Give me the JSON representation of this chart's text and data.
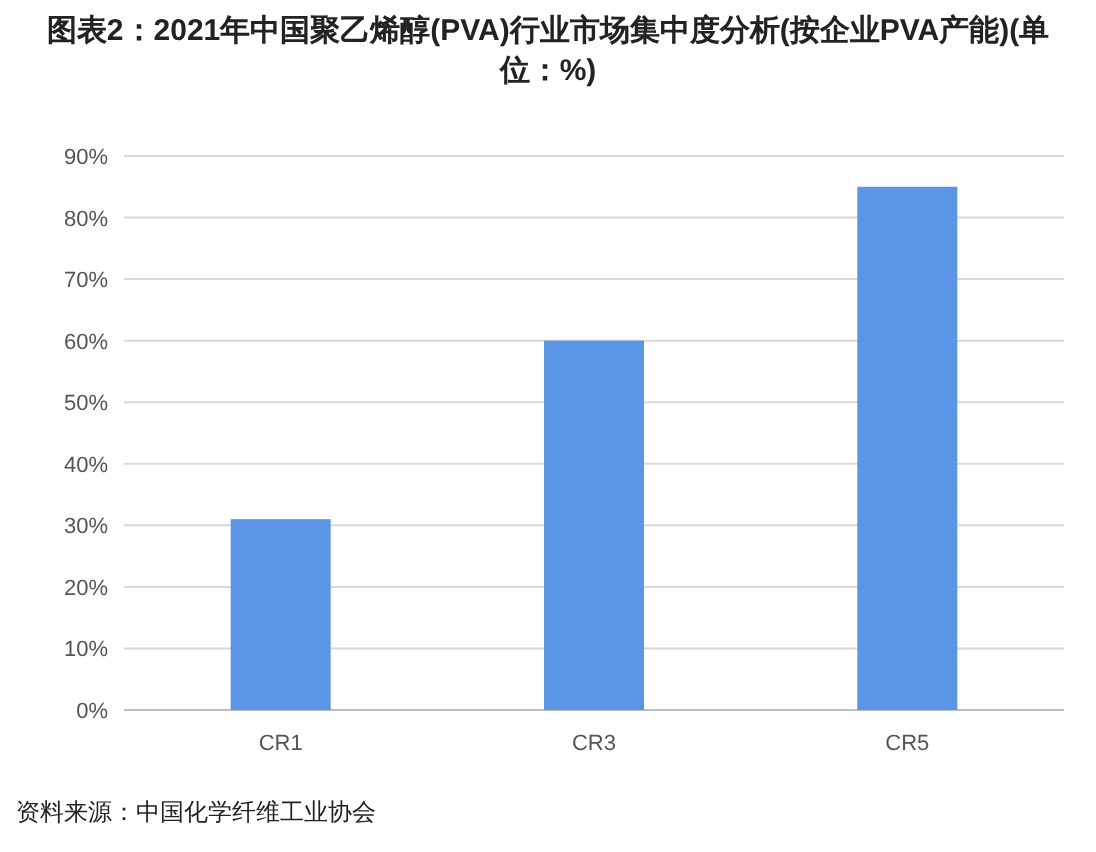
{
  "chart_data": {
    "type": "bar",
    "title": "图表2：2021年中国聚乙烯醇(PVA)行业市场集中度分析(按企业PVA产能)(单位：%)",
    "categories": [
      "CR1",
      "CR3",
      "CR5"
    ],
    "values": [
      31,
      60,
      85
    ],
    "color": "#5b96e6",
    "ylim": [
      0,
      90
    ],
    "yticks": [
      {
        "value": 0,
        "label": "0%"
      },
      {
        "value": 10,
        "label": "10%"
      },
      {
        "value": 20,
        "label": "20%"
      },
      {
        "value": 30,
        "label": "30%"
      },
      {
        "value": 40,
        "label": "40%"
      },
      {
        "value": 50,
        "label": "50%"
      },
      {
        "value": 60,
        "label": "60%"
      },
      {
        "value": 70,
        "label": "70%"
      },
      {
        "value": 80,
        "label": "80%"
      },
      {
        "value": 90,
        "label": "90%"
      }
    ],
    "grid": "y",
    "annotations": [
      "资料来源：中国化学纤维工业协会"
    ]
  }
}
